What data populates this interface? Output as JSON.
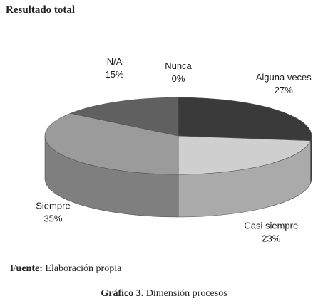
{
  "chart_data": {
    "type": "pie",
    "title": "Resultado total",
    "slices": [
      {
        "label": "Alguna veces",
        "value": 27,
        "value_label": "27%",
        "color": "#3a3a3a"
      },
      {
        "label": "Casi siempre",
        "value": 23,
        "value_label": "23%",
        "color": "#cfcfcf"
      },
      {
        "label": "Siempre",
        "value": 35,
        "value_label": "35%",
        "color": "#9b9b9b"
      },
      {
        "label": "N/A",
        "value": 15,
        "value_label": "15%",
        "color": "#606060"
      },
      {
        "label": "Nunca",
        "value": 0,
        "value_label": "0%",
        "color": "#ffffff"
      }
    ]
  },
  "source": {
    "label": "Fuente:",
    "text": "Elaboración propia"
  },
  "caption": {
    "label": "Gráfico 3.",
    "text": "Dimensión procesos"
  }
}
